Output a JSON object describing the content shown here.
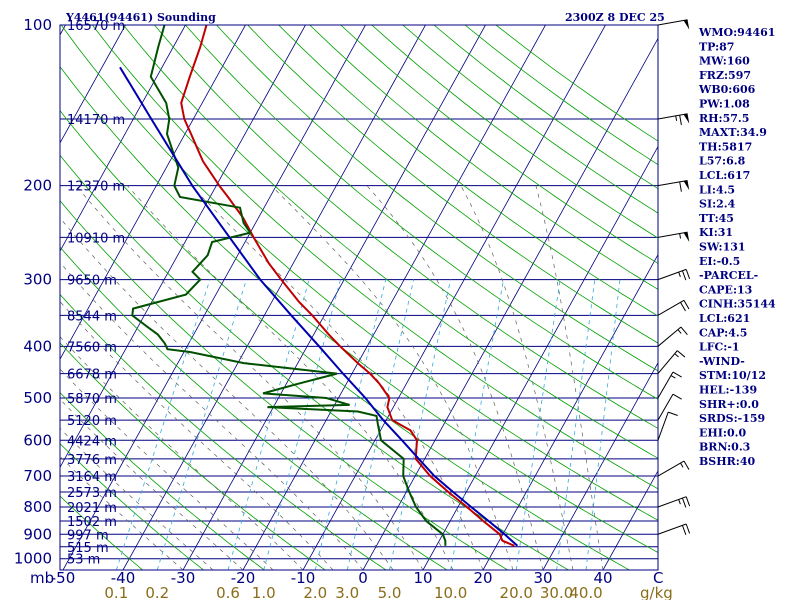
{
  "chart_data": {
    "type": "line",
    "title_left": "Y4461(94461) Sounding",
    "title_right": "2300Z  8 DEC 25",
    "y_axis_unit": "mb",
    "x_axis_unit": "C",
    "mixing_ratio_unit": "g/kg",
    "pressure_levels": [
      100,
      200,
      300,
      400,
      500,
      600,
      700,
      800,
      900,
      1000
    ],
    "pressure_range": [
      100,
      1050
    ],
    "temperature_ticks": [
      -50,
      -40,
      -30,
      -20,
      -10,
      0,
      10,
      20,
      30,
      40
    ],
    "mixing_ratio_labels": [
      "0.1",
      "0.2",
      "0.6",
      "1.0",
      "2.0",
      "3.0",
      "5.0",
      "10.0",
      "20.0",
      "30.0",
      "40.0"
    ],
    "height_labels": [
      {
        "p": 100,
        "label": "16570 m"
      },
      {
        "p": 150,
        "label": "14170 m"
      },
      {
        "p": 200,
        "label": "12370 m"
      },
      {
        "p": 250,
        "label": "10910 m"
      },
      {
        "p": 300,
        "label": "9650 m"
      },
      {
        "p": 350,
        "label": "8544 m"
      },
      {
        "p": 400,
        "label": "7560 m"
      },
      {
        "p": 450,
        "label": "6678 m"
      },
      {
        "p": 500,
        "label": "5870 m"
      },
      {
        "p": 550,
        "label": "5120 m"
      },
      {
        "p": 600,
        "label": "4424 m"
      },
      {
        "p": 650,
        "label": "3776 m"
      },
      {
        "p": 700,
        "label": "3164 m"
      },
      {
        "p": 750,
        "label": "2573 m"
      },
      {
        "p": 800,
        "label": "2021 m"
      },
      {
        "p": 850,
        "label": "1502 m"
      },
      {
        "p": 900,
        "label": "997 m"
      },
      {
        "p": 950,
        "label": "515 m"
      },
      {
        "p": 1000,
        "label": "53 m"
      }
    ],
    "series": [
      {
        "role": "temperature",
        "color": "#c00000",
        "points": [
          [
            946,
            23.0
          ],
          [
            925,
            20.5
          ],
          [
            900,
            19.5
          ],
          [
            850,
            15.5
          ],
          [
            800,
            11.5
          ],
          [
            750,
            7.0
          ],
          [
            700,
            2.5
          ],
          [
            650,
            -1.5
          ],
          [
            600,
            -3.0
          ],
          [
            575,
            -5.0
          ],
          [
            550,
            -9.0
          ],
          [
            520,
            -11.0
          ],
          [
            500,
            -11.5
          ],
          [
            470,
            -14.5
          ],
          [
            450,
            -17.0
          ],
          [
            430,
            -20.0
          ],
          [
            400,
            -24.5
          ],
          [
            380,
            -27.5
          ],
          [
            350,
            -32.0
          ],
          [
            330,
            -35.5
          ],
          [
            300,
            -40.5
          ],
          [
            280,
            -44.0
          ],
          [
            250,
            -49.0
          ],
          [
            230,
            -52.5
          ],
          [
            210,
            -57.0
          ],
          [
            200,
            -59.5
          ],
          [
            180,
            -64.5
          ],
          [
            160,
            -69.0
          ],
          [
            150,
            -71.5
          ],
          [
            140,
            -73.5
          ],
          [
            125,
            -74.5
          ],
          [
            110,
            -75.5
          ],
          [
            100,
            -76.5
          ]
        ]
      },
      {
        "role": "dewpoint",
        "color": "#005000",
        "points": [
          [
            946,
            11.5
          ],
          [
            925,
            11.0
          ],
          [
            900,
            10.0
          ],
          [
            850,
            6.0
          ],
          [
            800,
            3.0
          ],
          [
            750,
            0.5
          ],
          [
            700,
            -2.0
          ],
          [
            650,
            -3.5
          ],
          [
            600,
            -9.0
          ],
          [
            560,
            -11.0
          ],
          [
            540,
            -12.0
          ],
          [
            530,
            -15.5
          ],
          [
            520,
            -31.0
          ],
          [
            515,
            -17.5
          ],
          [
            500,
            -22.0
          ],
          [
            490,
            -33.0
          ],
          [
            470,
            -28.0
          ],
          [
            450,
            -22.5
          ],
          [
            430,
            -39.0
          ],
          [
            410,
            -49.0
          ],
          [
            405,
            -53.0
          ],
          [
            395,
            -54.0
          ],
          [
            380,
            -56.0
          ],
          [
            370,
            -58.0
          ],
          [
            350,
            -62.0
          ],
          [
            340,
            -62.5
          ],
          [
            320,
            -55.0
          ],
          [
            300,
            -54.0
          ],
          [
            290,
            -56.0
          ],
          [
            270,
            -55.0
          ],
          [
            255,
            -55.5
          ],
          [
            245,
            -50.0
          ],
          [
            235,
            -52.0
          ],
          [
            220,
            -54.0
          ],
          [
            210,
            -65.0
          ],
          [
            200,
            -67.0
          ],
          [
            185,
            -68.0
          ],
          [
            160,
            -73.0
          ],
          [
            150,
            -74.0
          ],
          [
            140,
            -76.0
          ],
          [
            125,
            -81.0
          ],
          [
            110,
            -82.5
          ],
          [
            100,
            -83.5
          ]
        ]
      },
      {
        "role": "parcel",
        "color": "#0000b0",
        "points": [
          [
            946,
            23.5
          ],
          [
            900,
            20.3
          ],
          [
            850,
            16.4
          ],
          [
            800,
            12.2
          ],
          [
            750,
            7.8
          ],
          [
            700,
            3.2
          ],
          [
            650,
            -1.0
          ],
          [
            600,
            -5.5
          ],
          [
            550,
            -10.5
          ],
          [
            500,
            -15.5
          ],
          [
            450,
            -21.5
          ],
          [
            400,
            -28.0
          ],
          [
            350,
            -35.5
          ],
          [
            300,
            -44.0
          ],
          [
            250,
            -53.0
          ],
          [
            200,
            -64.0
          ],
          [
            150,
            -77.0
          ],
          [
            120,
            -87.0
          ]
        ]
      }
    ],
    "wind_barbs": [
      {
        "p": 100,
        "dir": 80,
        "spd": 50
      },
      {
        "p": 150,
        "dir": 80,
        "spd": 65
      },
      {
        "p": 200,
        "dir": 80,
        "spd": 60
      },
      {
        "p": 250,
        "dir": 80,
        "spd": 55
      },
      {
        "p": 300,
        "dir": 70,
        "spd": 25
      },
      {
        "p": 350,
        "dir": 60,
        "spd": 20
      },
      {
        "p": 400,
        "dir": 50,
        "spd": 15
      },
      {
        "p": 450,
        "dir": 40,
        "spd": 15
      },
      {
        "p": 500,
        "dir": 30,
        "spd": 15
      },
      {
        "p": 550,
        "dir": 30,
        "spd": 10
      },
      {
        "p": 600,
        "dir": 20,
        "spd": 10
      },
      {
        "p": 700,
        "dir": 60,
        "spd": 15
      },
      {
        "p": 800,
        "dir": 70,
        "spd": 25
      },
      {
        "p": 900,
        "dir": 70,
        "spd": 20
      }
    ],
    "indices": [
      "WMO:94461",
      "TP:87",
      "MW:160",
      "FRZ:597",
      "WB0:606",
      "PW:1.08",
      "RH:57.5",
      "MAXT:34.9",
      "TH:5817",
      "L57:6.8",
      "LCL:617",
      "LI:4.5",
      "SI:2.4",
      "TT:45",
      "KI:31",
      "SW:131",
      "EI:-0.5",
      "-PARCEL-",
      "CAPE:13",
      "CINH:35144",
      "LCL:621",
      "CAP:4.5",
      "LFC:-1",
      "-WIND-",
      "STM:10/12",
      "HEL:-139",
      "SHR+:0.0",
      "SRDS:-159",
      "EHI:0.0",
      "BRN:0.3",
      "BSHR:40"
    ],
    "colors": {
      "isobar": "#000080",
      "isotherm": "#000080",
      "dry_adiabat": "#00a000",
      "moist_adiabat": "#606060",
      "mixing_ratio": "#33aadd",
      "frame": "#000080"
    }
  }
}
